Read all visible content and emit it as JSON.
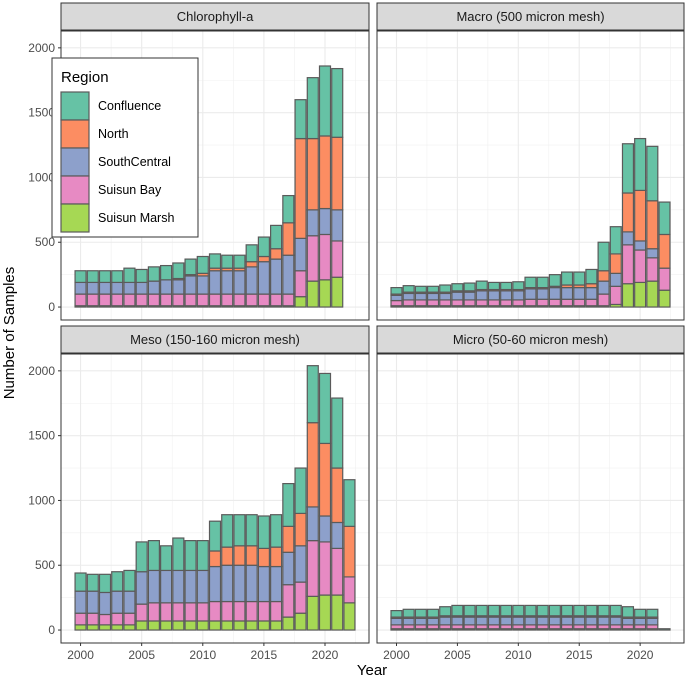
{
  "chart_data": {
    "type": "bar",
    "stacked": true,
    "facet_layout": "2x2",
    "xlabel": "Year",
    "ylabel": "Number of Samples",
    "x_ticks": [
      2000,
      2005,
      2010,
      2015,
      2020
    ],
    "y_ticks": [
      0,
      500,
      1000,
      1500,
      2000
    ],
    "ylim": [
      -100,
      2130
    ],
    "xlim": [
      1998.4,
      2023.6
    ],
    "legend": {
      "title": "Region",
      "placement": "top-left inside first panel",
      "entries": [
        {
          "name": "Confluence",
          "color": "#66C2A5"
        },
        {
          "name": "North",
          "color": "#FC8D62"
        },
        {
          "name": "SouthCentral",
          "color": "#8DA0CB"
        },
        {
          "name": "Suisun Bay",
          "color": "#E78AC3"
        },
        {
          "name": "Suisun Marsh",
          "color": "#A6D854"
        }
      ]
    },
    "stack_order_bottom_to_top": [
      "Suisun Marsh",
      "Suisun Bay",
      "SouthCentral",
      "North",
      "Confluence"
    ],
    "panels": [
      {
        "title": "Chlorophyll-a",
        "years": [
          2000,
          2001,
          2002,
          2003,
          2004,
          2005,
          2006,
          2007,
          2008,
          2009,
          2010,
          2011,
          2012,
          2013,
          2014,
          2015,
          2016,
          2017,
          2018,
          2019,
          2020,
          2021,
          2022
        ],
        "series": {
          "Suisun Marsh": [
            10,
            10,
            10,
            10,
            10,
            10,
            10,
            10,
            10,
            10,
            10,
            10,
            10,
            10,
            10,
            10,
            10,
            10,
            80,
            200,
            210,
            230,
            0
          ],
          "Suisun Bay": [
            90,
            90,
            90,
            90,
            90,
            90,
            90,
            90,
            90,
            90,
            90,
            90,
            90,
            90,
            90,
            90,
            90,
            90,
            200,
            350,
            350,
            280,
            0
          ],
          "SouthCentral": [
            90,
            90,
            90,
            90,
            90,
            90,
            100,
            110,
            110,
            140,
            140,
            180,
            180,
            180,
            210,
            250,
            270,
            300,
            250,
            200,
            200,
            240,
            0
          ],
          "North": [
            0,
            0,
            0,
            0,
            0,
            0,
            0,
            0,
            10,
            10,
            20,
            20,
            20,
            20,
            40,
            40,
            80,
            250,
            770,
            550,
            560,
            560,
            0
          ],
          "Confluence": [
            90,
            90,
            90,
            90,
            110,
            100,
            110,
            110,
            120,
            120,
            130,
            110,
            100,
            100,
            130,
            150,
            180,
            210,
            300,
            470,
            540,
            530,
            0
          ]
        }
      },
      {
        "title": "Macro (500 micron mesh)",
        "years": [
          2000,
          2001,
          2002,
          2003,
          2004,
          2005,
          2006,
          2007,
          2008,
          2009,
          2010,
          2011,
          2012,
          2013,
          2014,
          2015,
          2016,
          2017,
          2018,
          2019,
          2020,
          2021,
          2022
        ],
        "series": {
          "Suisun Marsh": [
            10,
            10,
            10,
            10,
            10,
            10,
            10,
            10,
            10,
            10,
            10,
            10,
            10,
            10,
            10,
            10,
            10,
            10,
            20,
            180,
            190,
            200,
            130
          ],
          "Suisun Bay": [
            40,
            45,
            45,
            45,
            45,
            45,
            45,
            45,
            45,
            45,
            45,
            50,
            50,
            50,
            50,
            50,
            50,
            90,
            140,
            300,
            250,
            180,
            170
          ],
          "SouthCentral": [
            40,
            50,
            50,
            50,
            50,
            60,
            60,
            70,
            70,
            70,
            70,
            80,
            80,
            90,
            90,
            90,
            90,
            100,
            100,
            100,
            70,
            70,
            0
          ],
          "North": [
            10,
            10,
            10,
            10,
            10,
            10,
            10,
            10,
            10,
            10,
            10,
            10,
            10,
            10,
            20,
            20,
            30,
            80,
            150,
            300,
            390,
            370,
            260
          ],
          "Confluence": [
            50,
            50,
            45,
            45,
            55,
            55,
            60,
            65,
            55,
            55,
            60,
            80,
            80,
            90,
            100,
            100,
            110,
            220,
            210,
            380,
            400,
            420,
            250
          ]
        }
      },
      {
        "title": "Meso (150-160 micron mesh)",
        "years": [
          2000,
          2001,
          2002,
          2003,
          2004,
          2005,
          2006,
          2007,
          2008,
          2009,
          2010,
          2011,
          2012,
          2013,
          2014,
          2015,
          2016,
          2017,
          2018,
          2019,
          2020,
          2021,
          2022
        ],
        "series": {
          "Suisun Marsh": [
            40,
            40,
            40,
            40,
            40,
            70,
            70,
            70,
            70,
            70,
            70,
            70,
            70,
            70,
            70,
            70,
            70,
            100,
            130,
            260,
            270,
            270,
            210
          ],
          "Suisun Bay": [
            90,
            90,
            80,
            90,
            90,
            130,
            140,
            140,
            140,
            140,
            140,
            150,
            150,
            150,
            150,
            150,
            150,
            250,
            240,
            430,
            410,
            360,
            200
          ],
          "SouthCentral": [
            170,
            170,
            170,
            170,
            170,
            250,
            250,
            250,
            250,
            250,
            250,
            270,
            280,
            280,
            280,
            270,
            270,
            250,
            280,
            260,
            200,
            200,
            0
          ],
          "North": [
            0,
            0,
            0,
            0,
            0,
            0,
            0,
            0,
            0,
            0,
            0,
            120,
            140,
            150,
            150,
            140,
            150,
            200,
            250,
            650,
            560,
            420,
            390
          ],
          "Confluence": [
            140,
            130,
            140,
            150,
            160,
            230,
            230,
            190,
            250,
            230,
            230,
            230,
            250,
            240,
            240,
            250,
            250,
            330,
            350,
            440,
            540,
            540,
            360
          ]
        }
      },
      {
        "title": "Micro (50-60 micron mesh)",
        "years": [
          2000,
          2001,
          2002,
          2003,
          2004,
          2005,
          2006,
          2007,
          2008,
          2009,
          2010,
          2011,
          2012,
          2013,
          2014,
          2015,
          2016,
          2017,
          2018,
          2019,
          2020,
          2021,
          2022
        ],
        "series": {
          "Suisun Marsh": [
            10,
            10,
            10,
            10,
            10,
            10,
            10,
            10,
            10,
            10,
            10,
            10,
            10,
            10,
            10,
            10,
            10,
            10,
            10,
            10,
            10,
            10,
            0
          ],
          "Suisun Bay": [
            30,
            30,
            30,
            30,
            30,
            30,
            30,
            30,
            30,
            30,
            30,
            30,
            30,
            30,
            30,
            30,
            30,
            30,
            30,
            30,
            30,
            30,
            0
          ],
          "SouthCentral": [
            50,
            50,
            50,
            50,
            60,
            60,
            60,
            60,
            60,
            60,
            60,
            60,
            60,
            60,
            60,
            60,
            60,
            60,
            60,
            50,
            50,
            50,
            0
          ],
          "North": [
            10,
            10,
            10,
            10,
            10,
            10,
            10,
            10,
            10,
            10,
            10,
            10,
            10,
            10,
            10,
            10,
            10,
            10,
            10,
            10,
            10,
            10,
            0
          ],
          "Confluence": [
            50,
            60,
            60,
            60,
            70,
            80,
            80,
            80,
            80,
            80,
            80,
            80,
            80,
            80,
            80,
            80,
            80,
            80,
            80,
            80,
            60,
            60,
            10
          ]
        }
      }
    ]
  }
}
